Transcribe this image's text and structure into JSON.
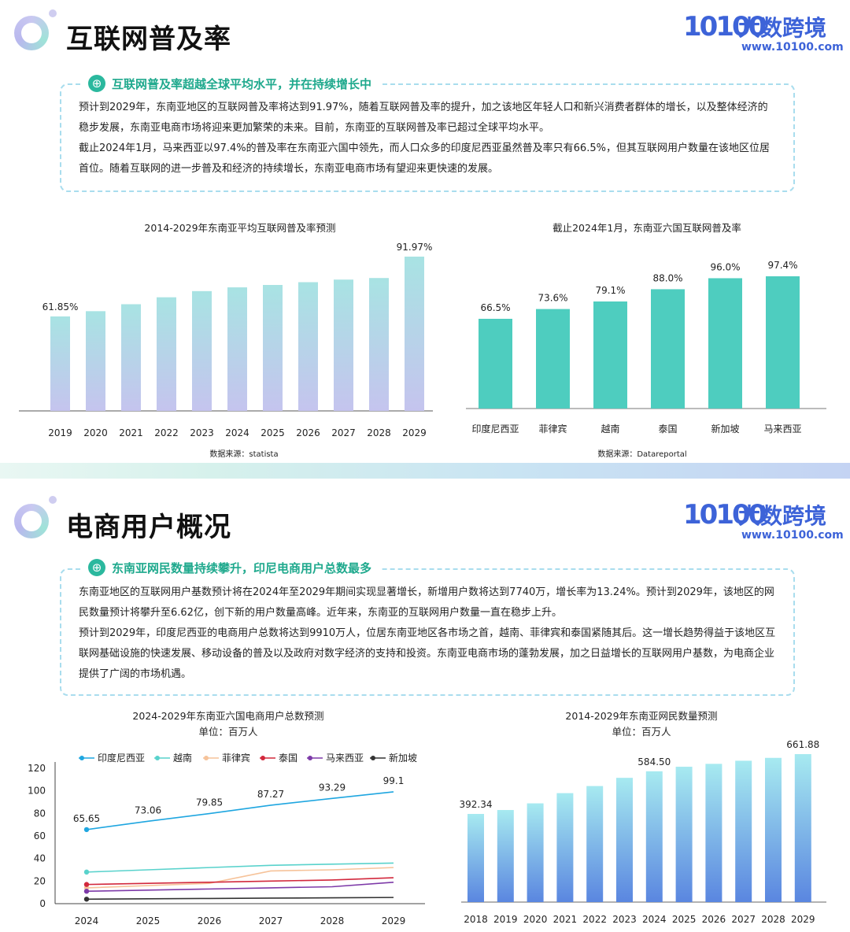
{
  "section1": {
    "title": "互联网普及率",
    "brand": {
      "mark": "10100",
      "name": "大数跨境",
      "url": "www.10100.com"
    },
    "callout": {
      "heading": "互联网普及率超越全球平均水平，并在持续增长中",
      "paragraphs": [
        "预计到2029年，东南亚地区的互联网普及率将达到91.97%，随着互联网普及率的提升，加之该地区年轻人口和新兴消费者群体的增长，以及整体经济的稳步发展，东南亚电商市场将迎来更加繁荣的未来。目前，东南亚的互联网普及率已超过全球平均水平。",
        "截止2024年1月，马来西亚以97.4%的普及率在东南亚六国中领先，而人口众多的印度尼西亚虽然普及率只有66.5%，但其互联网用户数量在该地区位居首位。随着互联网的进一步普及和经济的持续增长，东南亚电商市场有望迎来更快速的发展。"
      ]
    }
  },
  "section2": {
    "title": "电商用户概况",
    "brand": {
      "mark": "10100",
      "name": "大数跨境",
      "url": "www.10100.com"
    },
    "callout": {
      "heading": "东南亚网民数量持续攀升，印尼电商用户总数最多",
      "paragraphs": [
        "东南亚地区的互联网用户基数预计将在2024年至2029年期间实现显著增长，新增用户数将达到7740万，增长率为13.24%。预计到2029年，该地区的网民数量预计将攀升至6.62亿，创下新的用户数量高峰。近年来，东南亚的互联网用户数量一直在稳步上升。",
        "预计到2029年，印度尼西亚的电商用户总数将达到9910万人，位居东南亚地区各市场之首，越南、菲律宾和泰国紧随其后。这一增长趋势得益于该地区互联网基础设施的快速发展、移动设备的普及以及政府对数字经济的支持和投资。东南亚电商市场的蓬勃发展，加之日益增长的互联网用户基数，为电商企业提供了广阔的市场机遇。"
      ]
    }
  },
  "chart_data": [
    {
      "type": "bar",
      "title": "2014-2029年东南亚平均互联网普及率预测",
      "categories": [
        "2019",
        "2020",
        "2021",
        "2022",
        "2023",
        "2024",
        "2025",
        "2026",
        "2027",
        "2028",
        "2029"
      ],
      "values": [
        61.85,
        64.5,
        68.0,
        71.5,
        74.6,
        76.5,
        77.7,
        79.1,
        80.4,
        81.2,
        91.97
      ],
      "data_labels": {
        "2019": "61.85%",
        "2029": "91.97%"
      },
      "ylim": [
        0,
        100
      ],
      "source": "数据来源：statista",
      "colors": {
        "top": "#a8e3e3",
        "bottom": "#c2c3ee"
      }
    },
    {
      "type": "bar",
      "title": "截止2024年1月，东南亚六国互联网普及率",
      "categories": [
        "印度尼西亚",
        "菲律宾",
        "越南",
        "泰国",
        "新加坡",
        "马来西亚"
      ],
      "values": [
        66.5,
        73.6,
        79.1,
        88.0,
        96.0,
        97.4
      ],
      "data_labels": [
        "66.5%",
        "73.6%",
        "79.1%",
        "88.0%",
        "96.0%",
        "97.4%"
      ],
      "ylim": [
        0,
        100
      ],
      "source": "数据来源：Datareportal",
      "colors": {
        "bar": "#4ecdbf"
      }
    },
    {
      "type": "line",
      "title": "2024-2029年东南亚六国电商用户总数预测",
      "subtitle": "单位：百万人",
      "x": [
        "2024",
        "2025",
        "2026",
        "2027",
        "2028",
        "2029"
      ],
      "yticks": [
        "0",
        "20",
        "40",
        "60",
        "80",
        "100",
        "120"
      ],
      "ylim": [
        0,
        120
      ],
      "legend_position": "top",
      "series": [
        {
          "name": "印度尼西亚",
          "color": "#1fa6e0",
          "values": [
            65.65,
            73.06,
            79.85,
            87.27,
            93.29,
            99.1
          ],
          "labels": [
            "65.65",
            "73.06",
            "79.85",
            "87.27",
            "93.29",
            "99.1"
          ]
        },
        {
          "name": "越南",
          "color": "#59d2cc",
          "values": [
            28,
            30,
            32,
            34,
            35,
            36
          ]
        },
        {
          "name": "菲律宾",
          "color": "#f6c39a",
          "values": [
            14,
            16,
            18,
            29,
            30,
            32
          ]
        },
        {
          "name": "泰国",
          "color": "#d2283c",
          "values": [
            17,
            18,
            19,
            20,
            21,
            23
          ]
        },
        {
          "name": "马来西亚",
          "color": "#7d3aa8",
          "values": [
            11,
            12,
            13,
            14,
            15,
            19
          ]
        },
        {
          "name": "新加坡",
          "color": "#333333",
          "values": [
            4,
            4.3,
            4.6,
            4.9,
            5.2,
            5.5
          ]
        }
      ]
    },
    {
      "type": "bar",
      "title": "2014-2029年东南亚网民数量预测",
      "subtitle": "单位：百万人",
      "categories": [
        "2018",
        "2019",
        "2020",
        "2021",
        "2022",
        "2023",
        "2024",
        "2025",
        "2026",
        "2027",
        "2028",
        "2029"
      ],
      "values": [
        392.34,
        410,
        440,
        486,
        518,
        555,
        584.5,
        605,
        618,
        632,
        645,
        661.88
      ],
      "data_labels": {
        "2018": "392.34",
        "2024": "584.50",
        "2029": "661.88"
      },
      "ylim": [
        0,
        680
      ],
      "colors": {
        "top": "#a7eaf0",
        "bottom": "#5a86e0"
      }
    }
  ]
}
